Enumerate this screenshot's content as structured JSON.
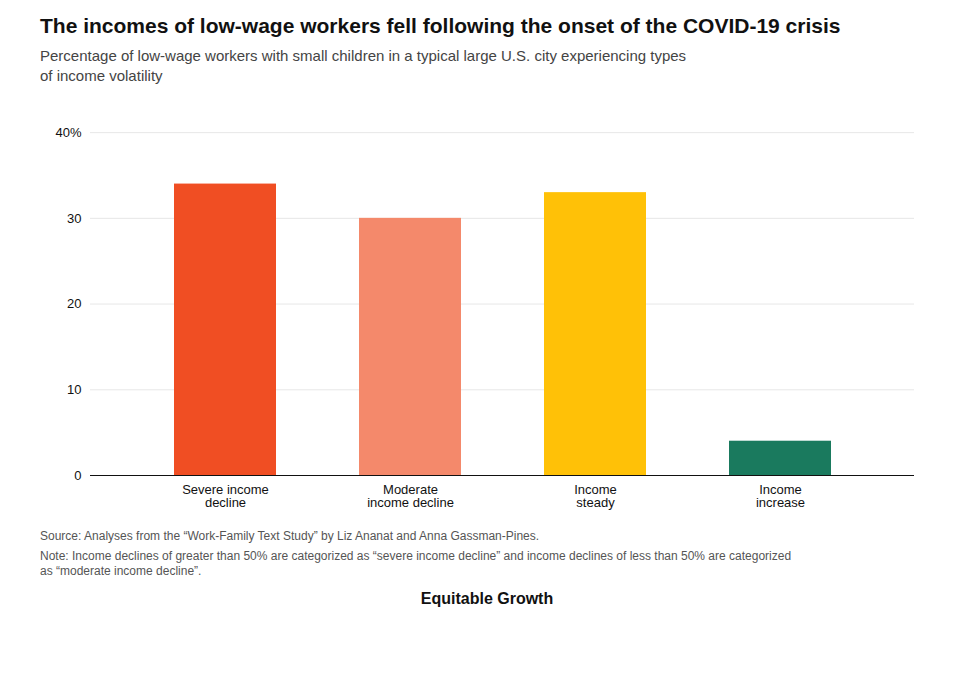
{
  "chart_data": {
    "type": "bar",
    "title": "The incomes of low-wage workers fell following the onset of the COVID-19 crisis",
    "subtitle": "Percentage of low-wage workers with small children in a typical large U.S. city experiencing types\nof income volatility",
    "categories": [
      "Severe income\ndecline",
      "Moderate\nincome decline",
      "Income\nsteady",
      "Income\nincrease"
    ],
    "values": [
      34,
      30,
      33,
      4
    ],
    "colors": [
      "#f04e23",
      "#f4896b",
      "#ffc107",
      "#1a7a5e"
    ],
    "ylim": [
      0,
      42
    ],
    "yticks": [
      0,
      10,
      20,
      30,
      {
        "value": 40,
        "label": "40%"
      }
    ],
    "grid": true,
    "source": "Source: Analyses from the “Work-Family Text Study” by Liz Ananat and Anna Gassman-Pines.",
    "note": "Note: Income declines of greater than 50% are categorized as “severe income decline” and income declines of less than 50% are categorized\nas “moderate income decline”.",
    "annotations": [
      "Equitable Growth"
    ]
  }
}
